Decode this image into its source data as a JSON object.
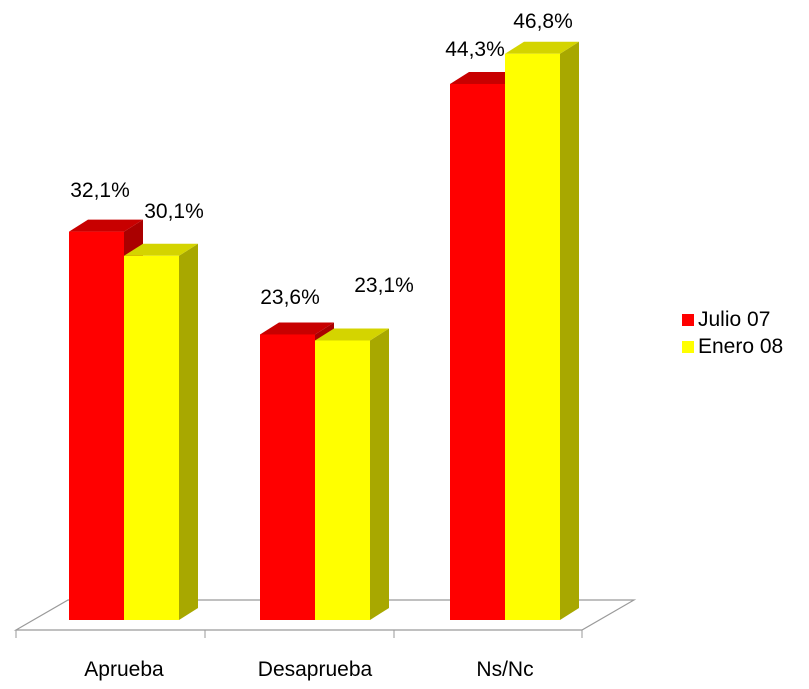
{
  "chart_data": {
    "type": "bar",
    "categories": [
      "Aprueba",
      "Desaprueba",
      "Ns/Nc"
    ],
    "series": [
      {
        "name": "Julio 07",
        "values": [
          32.1,
          23.6,
          44.3
        ],
        "labels": [
          "32,1%",
          "23,6%",
          "44,3%"
        ],
        "color": "#ff0000"
      },
      {
        "name": "Enero 08",
        "values": [
          30.1,
          23.1,
          46.8
        ],
        "labels": [
          "30,1%",
          "23,1%",
          "46,8%"
        ],
        "color": "#ffff00"
      }
    ],
    "ylim": [
      0,
      50
    ],
    "grid": false,
    "legend": "right",
    "three_d": true
  }
}
